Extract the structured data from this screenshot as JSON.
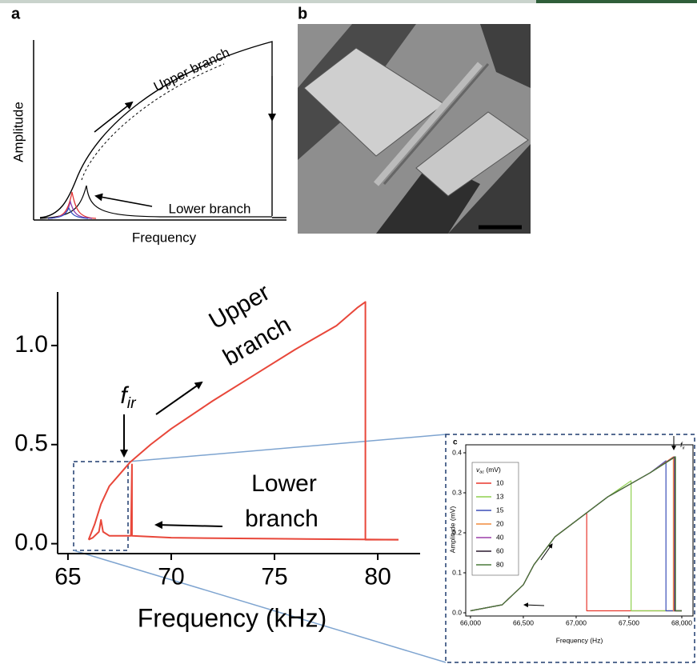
{
  "chart_data": [
    {
      "type": "schematic",
      "label": "a",
      "x_label": "Frequency",
      "y_label": "Amplitude",
      "annotations": [
        "Upper branch",
        "Lower branch"
      ]
    },
    {
      "type": "line",
      "x_label": "Frequency (kHz)",
      "xlim": [
        64.5,
        82.05
      ],
      "ylim": [
        -0.05,
        1.27
      ],
      "xticks": [
        65,
        70,
        75,
        80
      ],
      "yticks": [
        {
          "value": 0,
          "label": "0.0"
        },
        0.5,
        {
          "value": 1,
          "label": "1.0"
        }
      ],
      "annotations": [
        "Upper",
        "branch",
        {
          "text": "f",
          "subscript": "ir"
        },
        "Lower",
        "branch"
      ],
      "series": [
        {
          "color": "#e8473a",
          "x": [
            66.0,
            66.3,
            66.6,
            67.0,
            67.5,
            68.0,
            69,
            70,
            72,
            74,
            76,
            78,
            79.0,
            79.4,
            79.4,
            80,
            81
          ],
          "values": [
            0.02,
            0.1,
            0.2,
            0.29,
            0.35,
            0.41,
            0.5,
            0.58,
            0.72,
            0.85,
            0.98,
            1.1,
            1.19,
            1.22,
            0.02,
            0.02,
            0.02
          ]
        },
        {
          "color": "#e8473a",
          "x": [
            81,
            75,
            70,
            68.1,
            68.1,
            68.05,
            67,
            66.7,
            66.6,
            66.5,
            66.2,
            66
          ],
          "values": [
            0.02,
            0.025,
            0.03,
            0.04,
            0.4,
            0.04,
            0.04,
            0.06,
            0.12,
            0.06,
            0.03,
            0.02
          ]
        }
      ]
    },
    {
      "type": "line",
      "label": "c",
      "x_label": "Frequency (Hz)",
      "y_label": "Amplitude (mV)",
      "xlim": [
        65955,
        68106
      ],
      "ylim": [
        -0.008,
        0.42
      ],
      "xticks": [
        {
          "value": 66000,
          "label": "66,000"
        },
        {
          "value": 66500,
          "label": "66,500"
        },
        {
          "value": 67000,
          "label": "67,000"
        },
        {
          "value": 67500,
          "label": "67,500"
        },
        {
          "value": 68000,
          "label": "68,000"
        }
      ],
      "yticks": [
        {
          "value": 0,
          "label": "0.0"
        },
        0.1,
        0.2,
        0.3,
        0.4
      ],
      "annotations": [
        {
          "text": "f",
          "subscript": "ir"
        }
      ],
      "legend_title": {
        "text": "v",
        "subscript": "ac",
        "suffix": " (mV)"
      },
      "series": [
        {
          "name": "10",
          "color": "#e8372c",
          "x": [
            66000,
            66300,
            66500,
            66600,
            66800,
            67000,
            67100,
            67100,
            68000
          ],
          "values": [
            0.005,
            0.02,
            0.07,
            0.12,
            0.19,
            0.23,
            0.25,
            0.005,
            0.005
          ]
        },
        {
          "name": "13",
          "color": "#8fd14f",
          "x": [
            66000,
            66300,
            66500,
            66600,
            66800,
            67000,
            67100,
            67300,
            67520,
            67520,
            68000
          ],
          "values": [
            0.005,
            0.02,
            0.07,
            0.12,
            0.19,
            0.23,
            0.25,
            0.29,
            0.33,
            0.005,
            0.005
          ]
        },
        {
          "name": "15",
          "color": "#3b4fb8",
          "x": [
            66000,
            66300,
            66500,
            66600,
            66800,
            67000,
            67100,
            67300,
            67500,
            67700,
            67850,
            67850,
            68000
          ],
          "values": [
            0.005,
            0.02,
            0.07,
            0.12,
            0.19,
            0.23,
            0.25,
            0.29,
            0.32,
            0.35,
            0.38,
            0.005,
            0.005
          ]
        },
        {
          "name": "20",
          "color": "#f08a3c",
          "x": [
            66000,
            66300,
            66500,
            66600,
            66800,
            67000,
            67100,
            67300,
            67500,
            67700,
            67920,
            67920,
            68000
          ],
          "values": [
            0.005,
            0.02,
            0.07,
            0.12,
            0.19,
            0.23,
            0.25,
            0.29,
            0.32,
            0.35,
            0.39,
            0.005,
            0.005
          ]
        },
        {
          "name": "40",
          "color": "#9b3fa8",
          "x": [
            66000,
            66300,
            66500,
            66600,
            66800,
            67000,
            67100,
            67300,
            67500,
            67700,
            67930,
            67930,
            68000
          ],
          "values": [
            0.005,
            0.02,
            0.07,
            0.12,
            0.19,
            0.23,
            0.25,
            0.29,
            0.32,
            0.35,
            0.39,
            0.005,
            0.005
          ]
        },
        {
          "name": "60",
          "color": "#2a1a2e",
          "x": [
            66000,
            66300,
            66500,
            66600,
            66800,
            67000,
            67100,
            67300,
            67500,
            67700,
            67935,
            67935,
            68000
          ],
          "values": [
            0.005,
            0.02,
            0.07,
            0.12,
            0.19,
            0.23,
            0.25,
            0.29,
            0.32,
            0.35,
            0.39,
            0.005,
            0.005
          ]
        },
        {
          "name": "80",
          "color": "#4a7a3a",
          "x": [
            66000,
            66300,
            66500,
            66600,
            66800,
            67000,
            67100,
            67300,
            67500,
            67700,
            67940,
            67940,
            68000
          ],
          "values": [
            0.005,
            0.02,
            0.07,
            0.12,
            0.19,
            0.23,
            0.25,
            0.29,
            0.32,
            0.35,
            0.39,
            0.005,
            0.005
          ]
        }
      ]
    }
  ],
  "image": {
    "label": "b"
  }
}
